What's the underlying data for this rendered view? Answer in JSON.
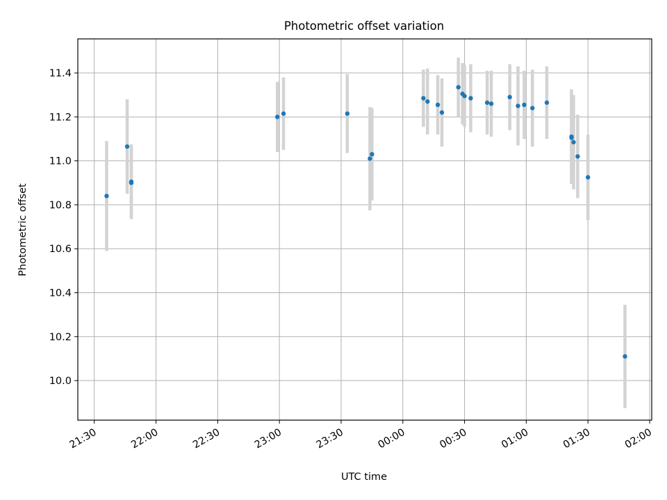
{
  "chart_data": {
    "type": "scatter",
    "title": "Photometric offset variation",
    "xlabel": "UTC time",
    "ylabel": "Photometric offset",
    "x_start_label": "21:30",
    "xlim": [
      "21:22",
      "02:01"
    ],
    "ylim": [
      9.82,
      11.555
    ],
    "x_ticks": [
      "21:30",
      "22:00",
      "22:30",
      "23:00",
      "23:30",
      "00:00",
      "00:30",
      "01:00",
      "01:30",
      "02:00"
    ],
    "y_ticks": [
      10.0,
      10.2,
      10.4,
      10.6,
      10.8,
      11.0,
      11.2,
      11.4
    ],
    "grid": true,
    "series": [
      {
        "x": [
          "21:36",
          "21:46",
          "21:48",
          "21:48",
          "22:59",
          "23:02",
          "23:33",
          "23:44",
          "23:45",
          "00:10",
          "00:12",
          "00:17",
          "00:19",
          "00:27",
          "00:29",
          "00:30",
          "00:33",
          "00:41",
          "00:43",
          "00:52",
          "00:56",
          "00:59",
          "01:03",
          "01:10",
          "01:22",
          "01:22",
          "01:23",
          "01:25",
          "01:30",
          "01:48"
        ],
        "y": [
          10.84,
          11.065,
          10.905,
          10.9,
          11.2,
          11.215,
          11.215,
          11.01,
          11.03,
          11.285,
          11.27,
          11.255,
          11.22,
          11.335,
          11.305,
          11.295,
          11.285,
          11.265,
          11.26,
          11.29,
          11.25,
          11.255,
          11.24,
          11.265,
          11.11,
          11.105,
          11.085,
          11.02,
          10.925,
          10.11
        ],
        "err": [
          0.25,
          0.215,
          0.17,
          0.165,
          0.16,
          0.165,
          0.18,
          0.235,
          0.21,
          0.13,
          0.15,
          0.135,
          0.155,
          0.135,
          0.14,
          0.14,
          0.155,
          0.145,
          0.15,
          0.15,
          0.18,
          0.155,
          0.175,
          0.165,
          0.215,
          0.2,
          0.215,
          0.19,
          0.195,
          0.235
        ],
        "marker_color": "#1f77b4",
        "errorbar_color": "#d3d3d3"
      }
    ]
  }
}
